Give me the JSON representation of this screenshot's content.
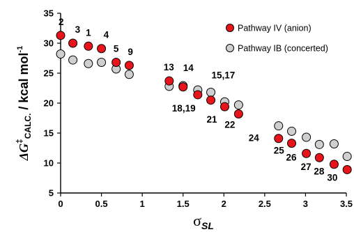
{
  "chart_data": {
    "type": "scatter",
    "xlim": [
      0,
      3.5
    ],
    "ylim": [
      5,
      35
    ],
    "xticks": [
      "0",
      "0.5",
      "1",
      "1.5",
      "2",
      "2.5",
      "3",
      "3.5"
    ],
    "xtick_values": [
      0,
      0.5,
      1,
      1.5,
      2,
      2.5,
      3,
      3.5
    ],
    "yticks": [
      "5",
      "10",
      "15",
      "20",
      "25",
      "30",
      "35"
    ],
    "ytick_values": [
      5,
      10,
      15,
      20,
      25,
      30,
      35
    ],
    "ylabel_parts": {
      "symbol": "ΔG",
      "dagger": "‡",
      "subscript": "CALC.",
      "rest": " / kcal mol",
      "superscript": "-1"
    },
    "xlabel_parts": {
      "symbol": "σ",
      "subscript": "SL"
    },
    "legend_position": "top-right",
    "grid": false,
    "series": [
      {
        "name": "Pathway IV (anion)",
        "color": "#e8141b",
        "x": [
          0.0,
          0.15,
          0.34,
          0.5,
          0.68,
          0.84,
          1.33,
          1.5,
          1.68,
          1.84,
          2.01,
          2.18,
          2.67,
          2.83,
          3.01,
          3.17,
          3.35,
          3.51
        ],
        "y": [
          31.3,
          30.0,
          29.5,
          29.1,
          26.8,
          26.3,
          23.7,
          22.7,
          21.4,
          20.5,
          19.4,
          18.2,
          14.1,
          13.3,
          11.6,
          10.9,
          9.8,
          8.9
        ]
      },
      {
        "name": "Pathway IB (concerted)",
        "color": "#cfcfcf",
        "x": [
          0.0,
          0.15,
          0.34,
          0.5,
          0.68,
          0.84,
          1.33,
          1.5,
          1.68,
          1.84,
          2.01,
          2.18,
          2.67,
          2.83,
          3.01,
          3.17,
          3.35,
          3.51
        ],
        "y": [
          28.2,
          27.2,
          26.6,
          26.8,
          25.7,
          24.8,
          22.8,
          22.9,
          22.2,
          21.8,
          20.2,
          19.7,
          16.2,
          15.3,
          14.3,
          13.1,
          13.2,
          11.1
        ]
      }
    ],
    "point_labels": [
      {
        "text": "2",
        "x": 0.0,
        "y": 31.3
      },
      {
        "text": "3",
        "x": 0.15,
        "y": 30.0
      },
      {
        "text": "1",
        "x": 0.34,
        "y": 29.5
      },
      {
        "text": "4",
        "x": 0.5,
        "y": 29.1
      },
      {
        "text": "5",
        "x": 0.68,
        "y": 26.8
      },
      {
        "text": "9",
        "x": 0.84,
        "y": 26.3
      },
      {
        "text": "13",
        "x": 1.33,
        "y": 23.7
      },
      {
        "text": "14",
        "x": 1.5,
        "y": 22.9
      },
      {
        "text": "15,17",
        "x": 1.84,
        "y": 21.8
      },
      {
        "text": "18,19",
        "x": 1.68,
        "y": 21.4
      },
      {
        "text": "21",
        "x": 2.01,
        "y": 19.4
      },
      {
        "text": "22",
        "x": 2.18,
        "y": 18.2
      },
      {
        "text": "24",
        "x": 2.67,
        "y": 14.1
      },
      {
        "text": "25",
        "x": 2.67,
        "y": 14.1
      },
      {
        "text": "26",
        "x": 2.83,
        "y": 13.3
      },
      {
        "text": "27",
        "x": 3.01,
        "y": 11.6
      },
      {
        "text": "28",
        "x": 3.17,
        "y": 10.9
      },
      {
        "text": "30",
        "x": 3.35,
        "y": 9.8
      }
    ]
  }
}
